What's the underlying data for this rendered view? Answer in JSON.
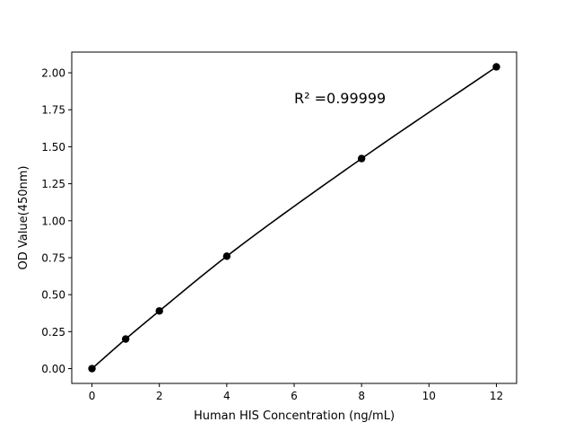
{
  "chart_data": {
    "type": "line",
    "title": "",
    "xlabel": "Human HIS Concentration (ng/mL)",
    "ylabel": "OD Value(450nm)",
    "xlim": [
      -0.6,
      12.6
    ],
    "ylim": [
      -0.1,
      2.14
    ],
    "xticks": [
      0,
      2,
      4,
      6,
      8,
      10,
      12
    ],
    "yticks": [
      0.0,
      0.25,
      0.5,
      0.75,
      1.0,
      1.25,
      1.5,
      1.75,
      2.0
    ],
    "xtick_labels": [
      "0",
      "2",
      "4",
      "6",
      "8",
      "10",
      "12"
    ],
    "ytick_labels": [
      "0.00",
      "0.25",
      "0.50",
      "0.75",
      "1.00",
      "1.25",
      "1.50",
      "1.75",
      "2.00"
    ],
    "grid": false,
    "series": [
      {
        "x": [
          0,
          1,
          2,
          4,
          8,
          12
        ],
        "y": [
          0.0,
          0.2,
          0.39,
          0.76,
          1.42,
          2.04
        ],
        "color": "#000000",
        "marker": "circle"
      }
    ],
    "annotation": {
      "text": "R² =0.99999",
      "x": 6,
      "y": 1.83
    }
  }
}
